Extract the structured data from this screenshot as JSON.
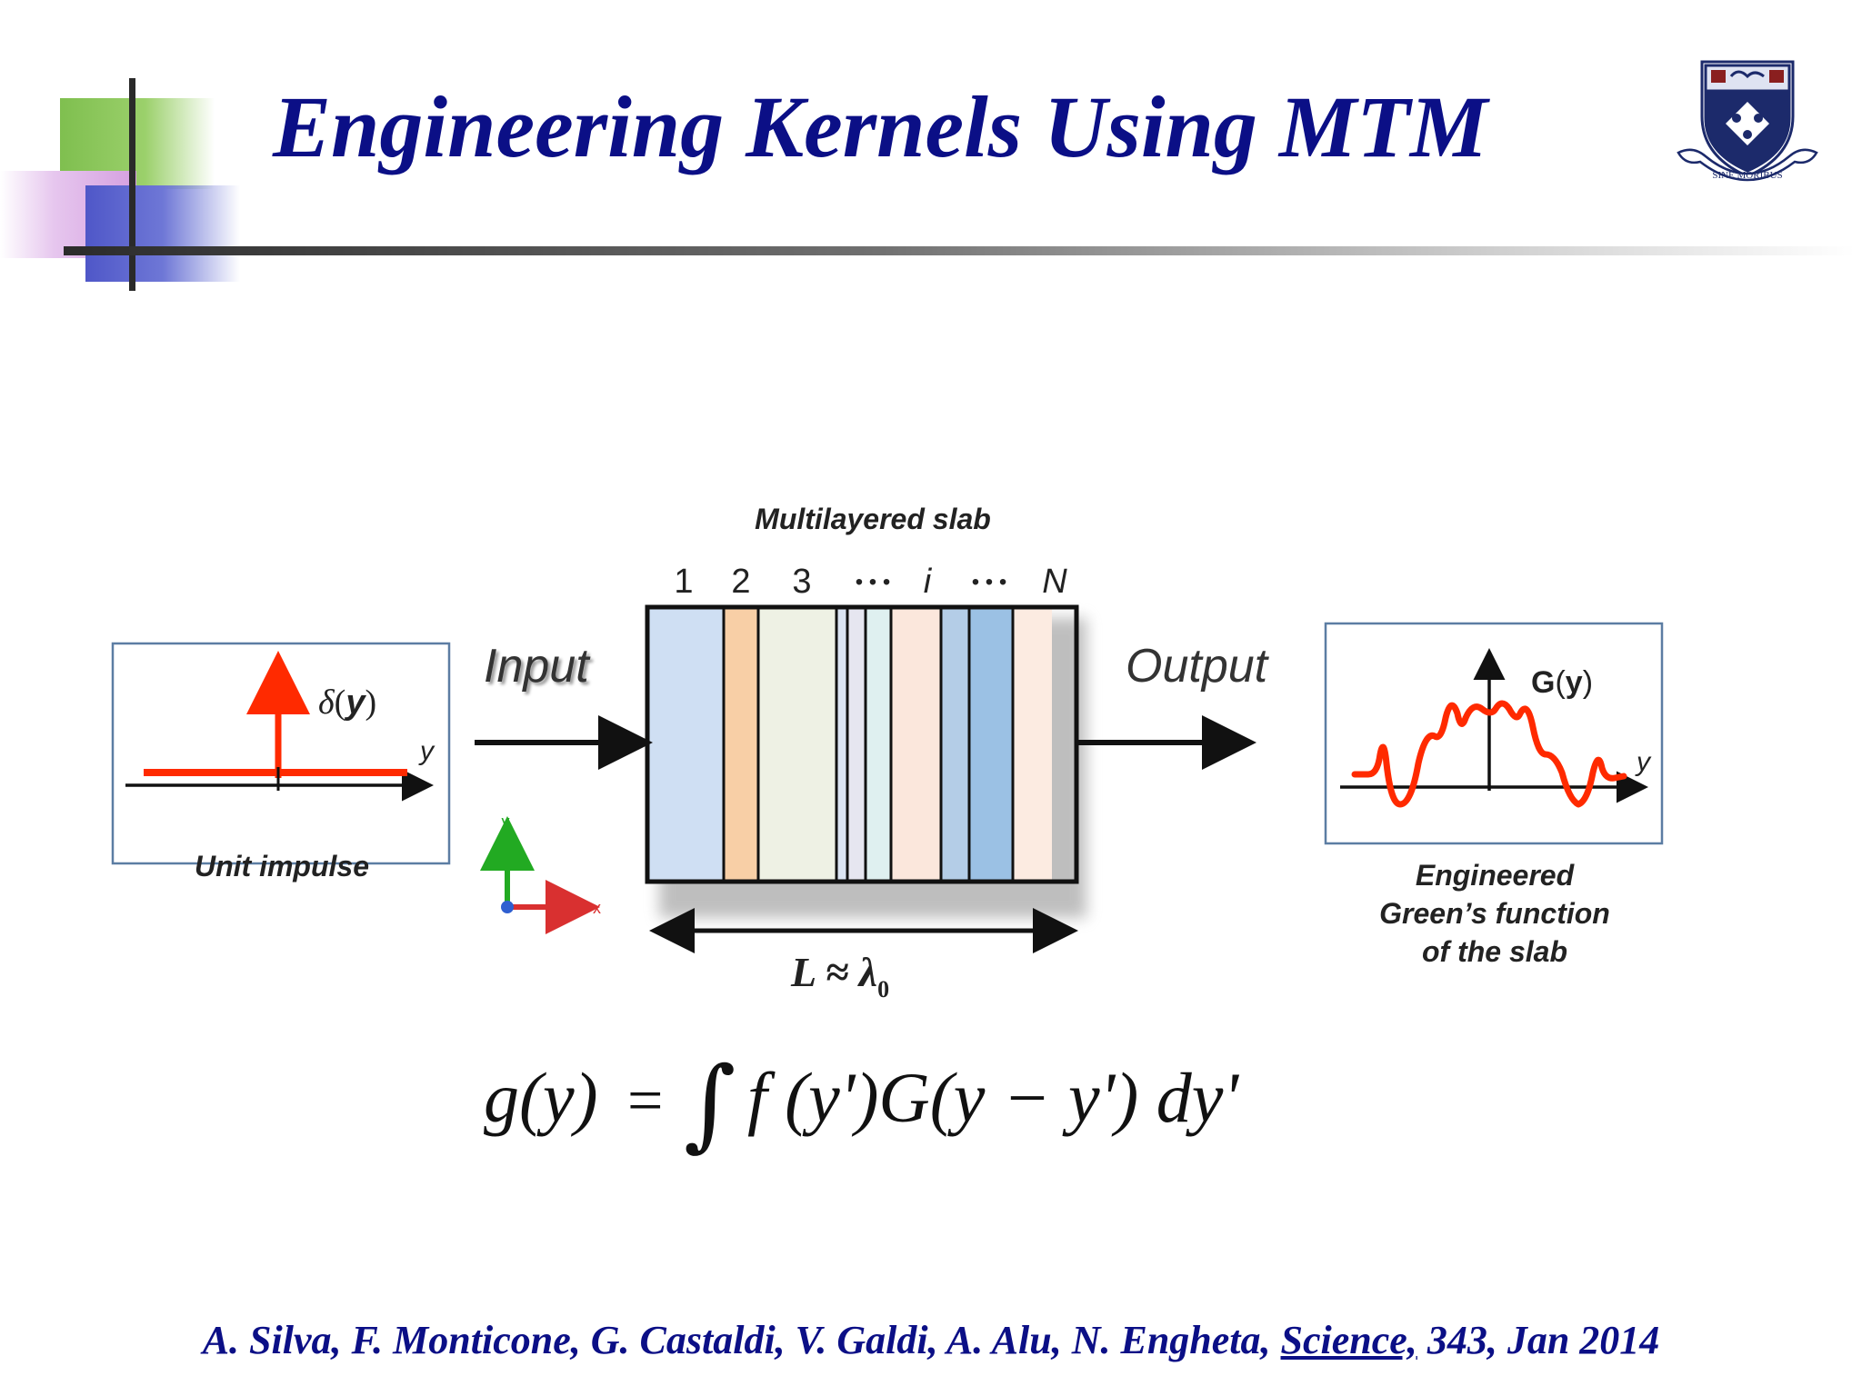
{
  "slide": {
    "title": "Engineering Kernels Using MTM",
    "logo": {
      "icon": "university-crest-icon",
      "motto": "SINE MORIBUS"
    }
  },
  "diagram": {
    "slab_title": "Multilayered slab",
    "layer_labels": [
      "1",
      "2",
      "3",
      "• • •",
      "i",
      "• • •",
      "N"
    ],
    "input_label": "Input",
    "output_label": "Output",
    "length_label": "L ≈ λ",
    "length_subscript": "0",
    "impulse": {
      "function_label": "δ",
      "argument": "y",
      "axis_label": "y",
      "caption": "Unit impulse"
    },
    "green": {
      "function_label": "G",
      "argument": "y",
      "axis_label": "y",
      "caption_lines": [
        "Engineered",
        "Green’s function",
        "of the slab"
      ]
    },
    "coords": {
      "y_axis": "y",
      "x_axis": "x"
    },
    "layer_colors": [
      "#cfdff3",
      "#f8cfa6",
      "#eef1e4",
      "#dbe4f2",
      "#e6e6f0",
      "#dff0f0",
      "#fbe7dc",
      "#b4cde7",
      "#9bc1e4",
      "#fcebe1"
    ]
  },
  "formula": {
    "lhs": "g(y)",
    "eq": "=",
    "integral": "∫",
    "rhs": "f (y')G(y − y') dy'"
  },
  "citation": {
    "authors": "A. Silva, F. Monticone, G. Castaldi, V. Galdi, A. Alu, N. Engheta, ",
    "journal": "Science,",
    "details": " 343, Jan 2014"
  },
  "colors": {
    "title": "#0b0f86",
    "signal": "#ff2a00",
    "coord_y": "#22aa22",
    "coord_x": "#d93030"
  }
}
